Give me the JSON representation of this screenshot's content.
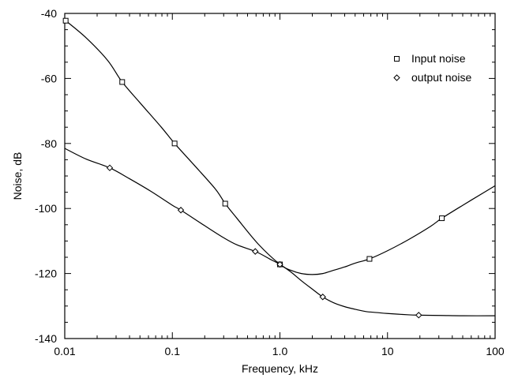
{
  "chart_data": {
    "type": "line",
    "xlabel": "Frequency, kHz",
    "ylabel": "Noise, dB",
    "x_scale": "log",
    "xlim": [
      0.01,
      100
    ],
    "ylim": [
      -140,
      -40
    ],
    "x_ticks": [
      0.01,
      0.1,
      1.0,
      10,
      100
    ],
    "x_tick_labels": [
      "0.01",
      "0.1",
      "1.0",
      "10",
      "100"
    ],
    "y_ticks": [
      -40,
      -60,
      -80,
      -100,
      -120,
      -140
    ],
    "y_tick_labels": [
      "-40",
      "-60",
      "-80",
      "-100",
      "-120",
      "-140"
    ],
    "grid": false,
    "legend_position": "top-right",
    "series": [
      {
        "name": "Input noise",
        "marker": "square",
        "x": [
          0.01,
          0.0158,
          0.0251,
          0.034,
          0.0501,
          0.079,
          0.105,
          0.158,
          0.251,
          0.31,
          0.398,
          0.631,
          1.0,
          1.26,
          1.58,
          2.0,
          2.51,
          3.16,
          3.98,
          5.01,
          6.8,
          10,
          15.8,
          25.1,
          32,
          50.1,
          79.4,
          100
        ],
        "y": [
          -42,
          -47.5,
          -54.5,
          -61,
          -67.5,
          -75,
          -80,
          -86.5,
          -94,
          -98.5,
          -103,
          -111,
          -117.2,
          -119,
          -120,
          -120.3,
          -120,
          -119,
          -118,
          -116.8,
          -115.5,
          -113,
          -109.5,
          -105.5,
          -103,
          -99,
          -95,
          -93
        ],
        "marker_x": [
          0.0102,
          0.0342,
          0.105,
          0.31,
          1.0,
          6.8,
          32
        ]
      },
      {
        "name": "output noise",
        "marker": "diamond",
        "x": [
          0.01,
          0.0158,
          0.0262,
          0.0398,
          0.0631,
          0.1,
          0.12,
          0.2,
          0.3,
          0.4,
          0.6,
          0.8,
          1.0,
          1.26,
          1.58,
          2.0,
          2.5,
          3.16,
          4.0,
          5.01,
          6.31,
          7.94,
          10,
          15.8,
          19.5,
          31.6,
          50.1,
          100
        ],
        "y": [
          -81.5,
          -84.8,
          -87.5,
          -90.8,
          -94.7,
          -99,
          -100.5,
          -105.3,
          -109,
          -111.2,
          -113.3,
          -115.5,
          -117.2,
          -119.5,
          -122.2,
          -124.8,
          -127.2,
          -129,
          -130.2,
          -131,
          -131.7,
          -132,
          -132.3,
          -132.7,
          -132.8,
          -132.9,
          -133,
          -133
        ],
        "marker_x": [
          0.0262,
          0.12,
          0.59,
          1.0,
          2.5,
          19.5
        ]
      }
    ]
  }
}
